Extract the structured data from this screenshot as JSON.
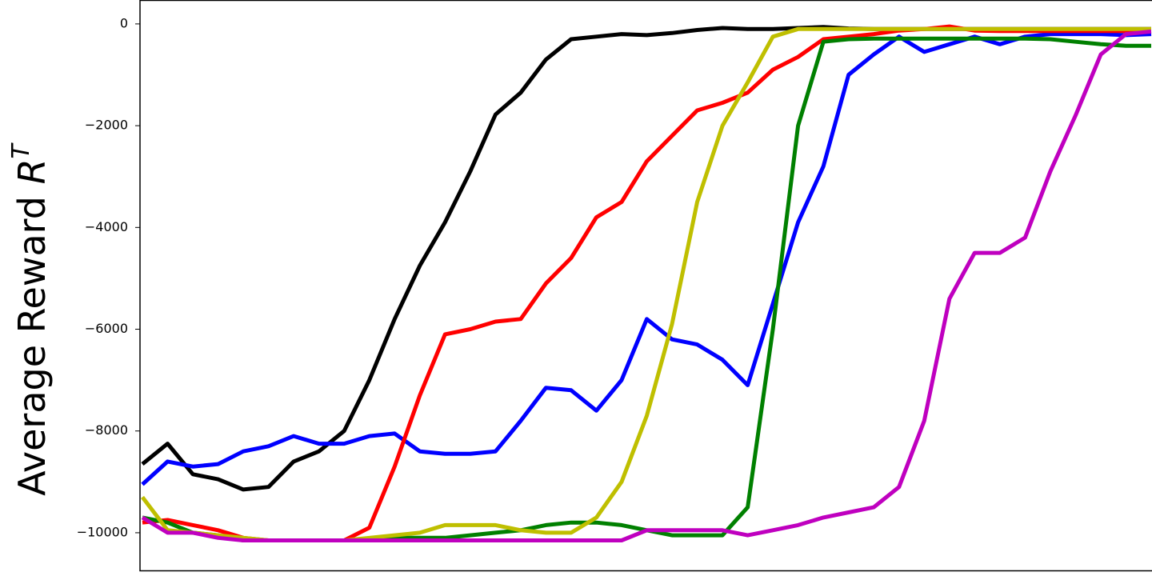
{
  "chart_data": {
    "type": "line",
    "ylabel": "Average Reward ",
    "ylabel_symbol": "R",
    "ylabel_superscript": "T",
    "categories": [
      null,
      null,
      null,
      null,
      null,
      null,
      null,
      null,
      null,
      null,
      null,
      null,
      null,
      null,
      null,
      null,
      null,
      null,
      null,
      null,
      null,
      null,
      null,
      null,
      null,
      null,
      null,
      null,
      null,
      null,
      null,
      null,
      null,
      null,
      null,
      null,
      null,
      null,
      null,
      null,
      null
    ],
    "ylim": [
      -10740,
      470
    ],
    "yticks": [
      {
        "value": -10000,
        "label": "−10000"
      },
      {
        "value": -8000,
        "label": "−8000"
      },
      {
        "value": -6000,
        "label": "−6000"
      },
      {
        "value": -4000,
        "label": "−4000"
      },
      {
        "value": -2000,
        "label": "−2000"
      },
      0
    ],
    "grid": false,
    "series": [
      {
        "color": "#000000",
        "values": [
          -8650,
          -8250,
          -8850,
          -8950,
          -9150,
          -9100,
          -8600,
          -8400,
          -8000,
          -7000,
          -5800,
          -4750,
          -3900,
          -2900,
          -1780,
          -1350,
          -700,
          -300,
          -250,
          -200,
          -220,
          -180,
          -120,
          -80,
          -100,
          -100,
          -80,
          -60,
          -90,
          -100,
          -100,
          -100,
          -100,
          -100,
          -100,
          -100,
          -100,
          -100,
          -100,
          -100,
          -100
        ]
      },
      {
        "color": "#0000ff",
        "values": [
          -9050,
          -8600,
          -8700,
          -8650,
          -8400,
          -8300,
          -8100,
          -8250,
          -8250,
          -8100,
          -8050,
          -8400,
          -8450,
          -8450,
          -8400,
          -7800,
          -7150,
          -7200,
          -7600,
          -7000,
          -5800,
          -6200,
          -6300,
          -6600,
          -7100,
          -5500,
          -3900,
          -2800,
          -1000,
          -600,
          -250,
          -550,
          -400,
          -250,
          -400,
          -250,
          -200,
          -200,
          -200,
          -220,
          -200
        ]
      },
      {
        "color": "#ff0000",
        "values": [
          -9800,
          -9750,
          -9850,
          -9950,
          -10100,
          -10150,
          -10150,
          -10150,
          -10150,
          -9900,
          -8700,
          -7300,
          -6100,
          -6000,
          -5850,
          -5800,
          -5100,
          -4600,
          -3800,
          -3500,
          -2700,
          -2200,
          -1700,
          -1550,
          -1350,
          -900,
          -650,
          -300,
          -250,
          -200,
          -130,
          -100,
          -50,
          -130,
          -140,
          -140,
          -140,
          -140,
          -140,
          -140,
          -140
        ]
      },
      {
        "color": "#008000",
        "values": [
          -9700,
          -9800,
          -10000,
          -10050,
          -10150,
          -10150,
          -10150,
          -10150,
          -10150,
          -10150,
          -10100,
          -10100,
          -10100,
          -10050,
          -10000,
          -9950,
          -9850,
          -9800,
          -9800,
          -9850,
          -9950,
          -10050,
          -10050,
          -10050,
          -9500,
          -6000,
          -2000,
          -350,
          -300,
          -290,
          -290,
          -290,
          -290,
          -290,
          -290,
          -290,
          -300,
          -350,
          -400,
          -430,
          -430
        ]
      },
      {
        "color": "#bfbf00",
        "values": [
          -9300,
          -9950,
          -10000,
          -10050,
          -10100,
          -10150,
          -10150,
          -10150,
          -10150,
          -10100,
          -10050,
          -10000,
          -9850,
          -9850,
          -9850,
          -9950,
          -10000,
          -10000,
          -9700,
          -9000,
          -7700,
          -5900,
          -3500,
          -2000,
          -1150,
          -250,
          -100,
          -100,
          -100,
          -100,
          -100,
          -100,
          -100,
          -100,
          -100,
          -100,
          -100,
          -100,
          -100,
          -100,
          -100
        ]
      },
      {
        "color": "#bf00bf",
        "values": [
          -9700,
          -10000,
          -10000,
          -10100,
          -10150,
          -10150,
          -10150,
          -10150,
          -10150,
          -10150,
          -10150,
          -10150,
          -10150,
          -10150,
          -10150,
          -10150,
          -10150,
          -10150,
          -10150,
          -10150,
          -9950,
          -9950,
          -9950,
          -9950,
          -10050,
          -9950,
          -9850,
          -9700,
          -9600,
          -9500,
          -9100,
          -7800,
          -5400,
          -4500,
          -4500,
          -4200,
          -2900,
          -1800,
          -600,
          -200,
          -150
        ]
      }
    ]
  }
}
